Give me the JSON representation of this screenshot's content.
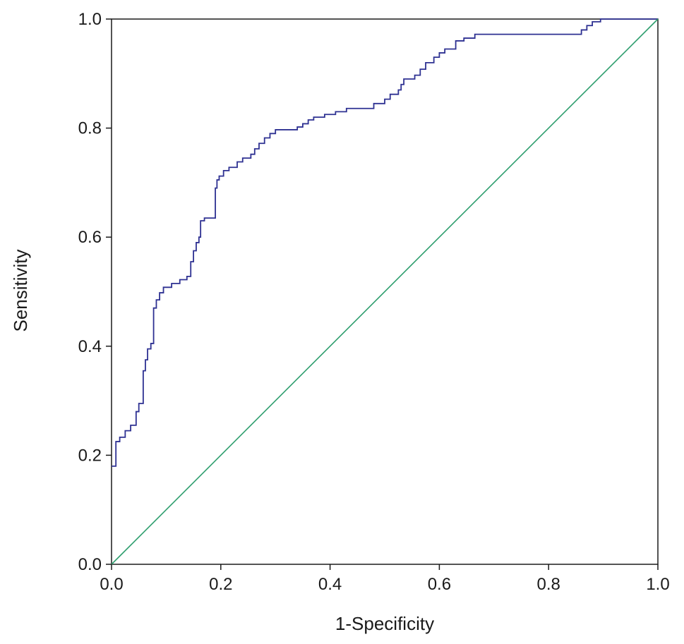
{
  "chart_data": {
    "type": "line",
    "title": "",
    "xlabel": "1-Specificity",
    "ylabel": "Sensitivity",
    "xlim": [
      0,
      1
    ],
    "ylim": [
      0,
      1
    ],
    "grid": false,
    "x_ticks": [
      "0.0",
      "0.2",
      "0.4",
      "0.6",
      "0.8",
      "1.0"
    ],
    "y_ticks": [
      "0.0",
      "0.2",
      "0.4",
      "0.6",
      "0.8",
      "1.0"
    ],
    "series": [
      {
        "color": "#2e3192",
        "step": true,
        "points": [
          [
            0.0,
            0.18
          ],
          [
            0.008,
            0.18
          ],
          [
            0.008,
            0.225
          ],
          [
            0.015,
            0.225
          ],
          [
            0.015,
            0.233
          ],
          [
            0.025,
            0.233
          ],
          [
            0.025,
            0.245
          ],
          [
            0.035,
            0.245
          ],
          [
            0.035,
            0.255
          ],
          [
            0.045,
            0.255
          ],
          [
            0.045,
            0.28
          ],
          [
            0.05,
            0.28
          ],
          [
            0.05,
            0.295
          ],
          [
            0.058,
            0.295
          ],
          [
            0.058,
            0.355
          ],
          [
            0.062,
            0.355
          ],
          [
            0.062,
            0.375
          ],
          [
            0.066,
            0.375
          ],
          [
            0.066,
            0.395
          ],
          [
            0.072,
            0.395
          ],
          [
            0.072,
            0.405
          ],
          [
            0.077,
            0.405
          ],
          [
            0.077,
            0.47
          ],
          [
            0.082,
            0.47
          ],
          [
            0.082,
            0.485
          ],
          [
            0.088,
            0.485
          ],
          [
            0.088,
            0.498
          ],
          [
            0.095,
            0.498
          ],
          [
            0.095,
            0.508
          ],
          [
            0.11,
            0.508
          ],
          [
            0.11,
            0.515
          ],
          [
            0.125,
            0.515
          ],
          [
            0.125,
            0.522
          ],
          [
            0.138,
            0.522
          ],
          [
            0.138,
            0.528
          ],
          [
            0.145,
            0.528
          ],
          [
            0.145,
            0.555
          ],
          [
            0.15,
            0.555
          ],
          [
            0.15,
            0.575
          ],
          [
            0.155,
            0.575
          ],
          [
            0.155,
            0.59
          ],
          [
            0.16,
            0.59
          ],
          [
            0.16,
            0.6
          ],
          [
            0.163,
            0.6
          ],
          [
            0.163,
            0.63
          ],
          [
            0.17,
            0.63
          ],
          [
            0.17,
            0.635
          ],
          [
            0.19,
            0.635
          ],
          [
            0.19,
            0.69
          ],
          [
            0.193,
            0.69
          ],
          [
            0.193,
            0.705
          ],
          [
            0.197,
            0.705
          ],
          [
            0.197,
            0.712
          ],
          [
            0.205,
            0.712
          ],
          [
            0.205,
            0.722
          ],
          [
            0.215,
            0.722
          ],
          [
            0.215,
            0.728
          ],
          [
            0.23,
            0.728
          ],
          [
            0.23,
            0.738
          ],
          [
            0.24,
            0.738
          ],
          [
            0.24,
            0.745
          ],
          [
            0.255,
            0.745
          ],
          [
            0.255,
            0.752
          ],
          [
            0.262,
            0.752
          ],
          [
            0.262,
            0.762
          ],
          [
            0.27,
            0.762
          ],
          [
            0.27,
            0.772
          ],
          [
            0.28,
            0.772
          ],
          [
            0.28,
            0.782
          ],
          [
            0.29,
            0.782
          ],
          [
            0.29,
            0.79
          ],
          [
            0.3,
            0.79
          ],
          [
            0.3,
            0.797
          ],
          [
            0.34,
            0.797
          ],
          [
            0.34,
            0.802
          ],
          [
            0.35,
            0.802
          ],
          [
            0.35,
            0.808
          ],
          [
            0.36,
            0.808
          ],
          [
            0.36,
            0.815
          ],
          [
            0.37,
            0.815
          ],
          [
            0.37,
            0.82
          ],
          [
            0.39,
            0.82
          ],
          [
            0.39,
            0.825
          ],
          [
            0.41,
            0.825
          ],
          [
            0.41,
            0.83
          ],
          [
            0.43,
            0.83
          ],
          [
            0.43,
            0.836
          ],
          [
            0.48,
            0.836
          ],
          [
            0.48,
            0.845
          ],
          [
            0.5,
            0.845
          ],
          [
            0.5,
            0.853
          ],
          [
            0.51,
            0.853
          ],
          [
            0.51,
            0.862
          ],
          [
            0.525,
            0.862
          ],
          [
            0.525,
            0.87
          ],
          [
            0.53,
            0.87
          ],
          [
            0.53,
            0.88
          ],
          [
            0.535,
            0.88
          ],
          [
            0.535,
            0.89
          ],
          [
            0.555,
            0.89
          ],
          [
            0.555,
            0.897
          ],
          [
            0.565,
            0.897
          ],
          [
            0.565,
            0.908
          ],
          [
            0.575,
            0.908
          ],
          [
            0.575,
            0.92
          ],
          [
            0.59,
            0.92
          ],
          [
            0.59,
            0.93
          ],
          [
            0.6,
            0.93
          ],
          [
            0.6,
            0.938
          ],
          [
            0.61,
            0.938
          ],
          [
            0.61,
            0.945
          ],
          [
            0.63,
            0.945
          ],
          [
            0.63,
            0.96
          ],
          [
            0.645,
            0.96
          ],
          [
            0.645,
            0.965
          ],
          [
            0.665,
            0.965
          ],
          [
            0.665,
            0.972
          ],
          [
            0.86,
            0.972
          ],
          [
            0.86,
            0.98
          ],
          [
            0.87,
            0.98
          ],
          [
            0.87,
            0.988
          ],
          [
            0.88,
            0.988
          ],
          [
            0.88,
            0.995
          ],
          [
            0.895,
            0.995
          ],
          [
            0.895,
            1.0
          ],
          [
            1.0,
            1.0
          ]
        ]
      },
      {
        "color": "#2e9e6e",
        "step": false,
        "points": [
          [
            0,
            0
          ],
          [
            1,
            1
          ]
        ]
      }
    ]
  }
}
